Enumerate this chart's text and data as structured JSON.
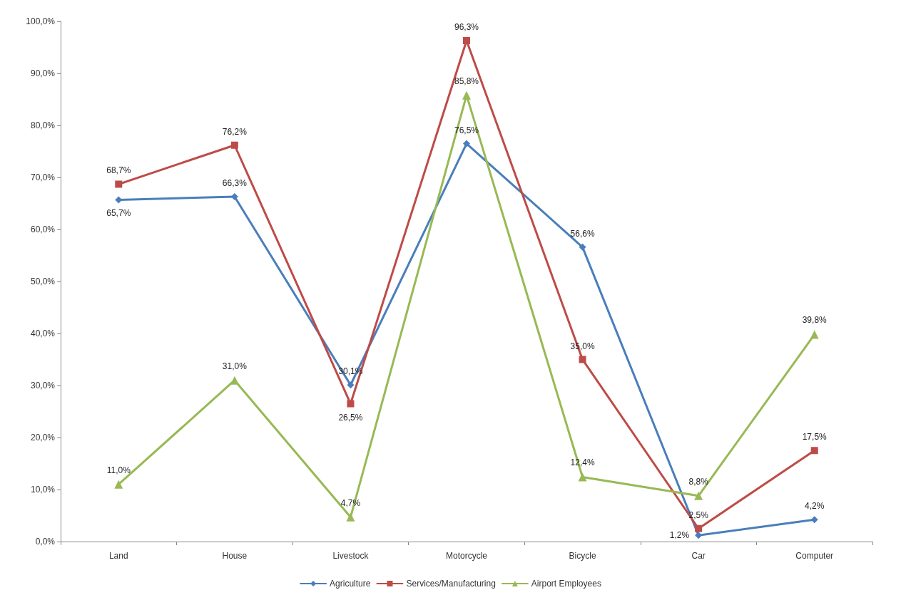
{
  "chart_data": {
    "type": "line",
    "categories": [
      "Land",
      "House",
      "Livestock",
      "Motorcycle",
      "Bicycle",
      "Car",
      "Computer"
    ],
    "ylim": [
      0,
      100
    ],
    "yticks": [
      {
        "value": 0,
        "label": "0,0%"
      },
      {
        "value": 10,
        "label": "10,0%"
      },
      {
        "value": 20,
        "label": "20,0%"
      },
      {
        "value": 30,
        "label": "30,0%"
      },
      {
        "value": 40,
        "label": "40,0%"
      },
      {
        "value": 50,
        "label": "50,0%"
      },
      {
        "value": 60,
        "label": "60,0%"
      },
      {
        "value": 70,
        "label": "70,0%"
      },
      {
        "value": 80,
        "label": "80,0%"
      },
      {
        "value": 90,
        "label": "90,0%"
      },
      {
        "value": 100,
        "label": "100,0%"
      }
    ],
    "grid": false,
    "legend": "bottom",
    "line_style": "solid",
    "series": [
      {
        "name": "Agriculture",
        "color": "#4a7ebb",
        "marker": "diamond",
        "values": [
          65.7,
          66.3,
          30.1,
          76.5,
          56.6,
          1.2,
          4.2
        ],
        "value_labels": [
          "65,7%",
          "66,3%",
          "30,1%",
          "76,5%",
          "56,6%",
          "1,2%",
          "4,2%"
        ]
      },
      {
        "name": "Services/Manufacturing",
        "color": "#be4b48",
        "marker": "square",
        "values": [
          68.7,
          76.2,
          26.5,
          96.3,
          35.0,
          2.5,
          17.5
        ],
        "value_labels": [
          "68,7%",
          "76,2%",
          "26,5%",
          "96,3%",
          "35,0%",
          "2,5%",
          "17,5%"
        ]
      },
      {
        "name": "Airport Employees",
        "color": "#98b954",
        "marker": "triangle",
        "values": [
          11.0,
          31.0,
          4.7,
          85.8,
          12.4,
          8.8,
          39.8
        ],
        "value_labels": [
          "11,0%",
          "31,0%",
          "4,7%",
          "85,8%",
          "12,4%",
          "8,8%",
          "39,8%"
        ]
      }
    ]
  }
}
